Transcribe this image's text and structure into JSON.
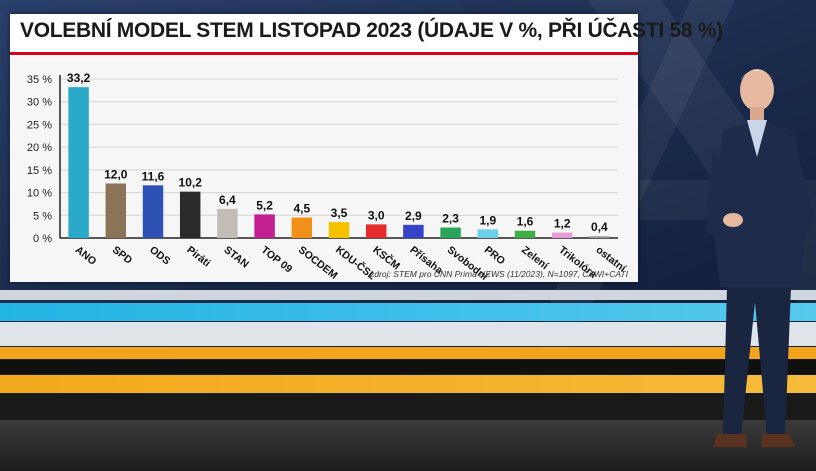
{
  "title": "VOLEBNÍ MODEL STEM LISTOPAD 2023 (ÚDAJE V %, PŘI ÚČASTI 58 %)",
  "source": "zdroj: STEM pro CNN Prima NEWS (11/2023), N=1097, CAWI+CATI",
  "chart_data": {
    "type": "bar",
    "title": "VOLEBNÍ MODEL STEM LISTOPAD 2023 (ÚDAJE V %, PŘI ÚČASTI 58 %)",
    "xlabel": "",
    "ylabel": "",
    "ylim": [
      0,
      35
    ],
    "yticks": [
      "0 %",
      "5 %",
      "10 %",
      "15 %",
      "20 %",
      "25 %",
      "30 %",
      "35 %"
    ],
    "grid": true,
    "categories": [
      "ANO",
      "SPD",
      "ODS",
      "Piráti",
      "STAN",
      "TOP 09",
      "SOCDEM",
      "KDU-ČSL",
      "KSČM",
      "Přísaha",
      "Svobodní",
      "PRO",
      "Zelení",
      "Trikolóra",
      "ostatní"
    ],
    "values": [
      33.2,
      12.0,
      11.6,
      10.2,
      6.4,
      5.2,
      4.5,
      3.5,
      3.0,
      2.9,
      2.3,
      1.9,
      1.6,
      1.2,
      0.4
    ],
    "value_labels": [
      "33,2",
      "12,0",
      "11,6",
      "10,2",
      "6,4",
      "5,2",
      "4,5",
      "3,5",
      "3,0",
      "2,9",
      "2,3",
      "1,9",
      "1,6",
      "1,2",
      "0,4"
    ],
    "colors": [
      "#2aa9c9",
      "#8a7457",
      "#2d51b5",
      "#2a2a2a",
      "#c2bdb4",
      "#c21f93",
      "#f08f1a",
      "#f6c200",
      "#e52b2b",
      "#3744c8",
      "#2aa45a",
      "#6bd1e8",
      "#3fae43",
      "#e99ad8",
      "#9a9a9a"
    ]
  }
}
